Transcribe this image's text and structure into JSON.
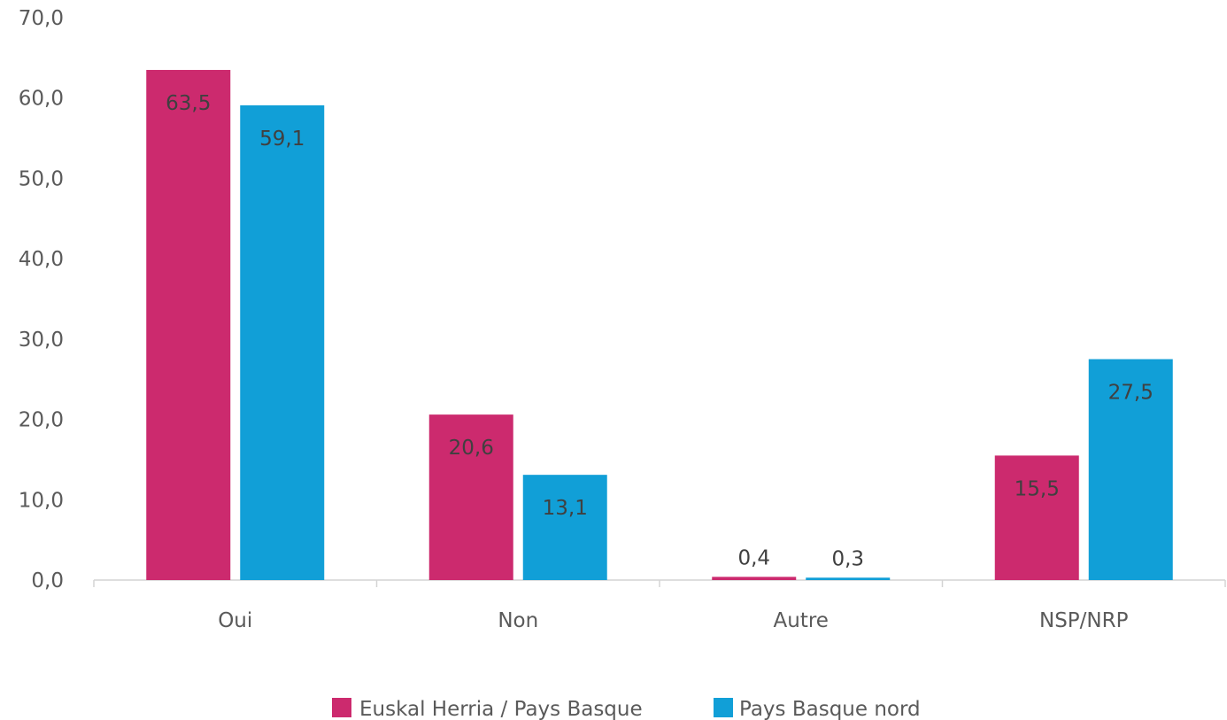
{
  "chart_data": {
    "type": "bar",
    "categories": [
      "Oui",
      "Non",
      "Autre",
      "NSP/NRP"
    ],
    "series": [
      {
        "name": "Euskal Herria / Pays Basque",
        "color": "#cc2a6e",
        "values": [
          63.5,
          20.6,
          0.4,
          15.5
        ],
        "labels": [
          "63,5",
          "20,6",
          "0,4",
          "15,5"
        ]
      },
      {
        "name": "Pays Basque nord",
        "color": "#119fd7",
        "values": [
          59.1,
          13.1,
          0.3,
          27.5
        ],
        "labels": [
          "59,1",
          "13,1",
          "0,3",
          "27,5"
        ]
      }
    ],
    "ylim": [
      0,
      70
    ],
    "yticks": [
      0,
      10,
      20,
      30,
      40,
      50,
      60,
      70
    ],
    "ytick_labels": [
      "0,0",
      "10,0",
      "20,0",
      "30,0",
      "40,0",
      "50,0",
      "60,0",
      "70,0"
    ],
    "grid": false,
    "legend_position": "bottom"
  }
}
